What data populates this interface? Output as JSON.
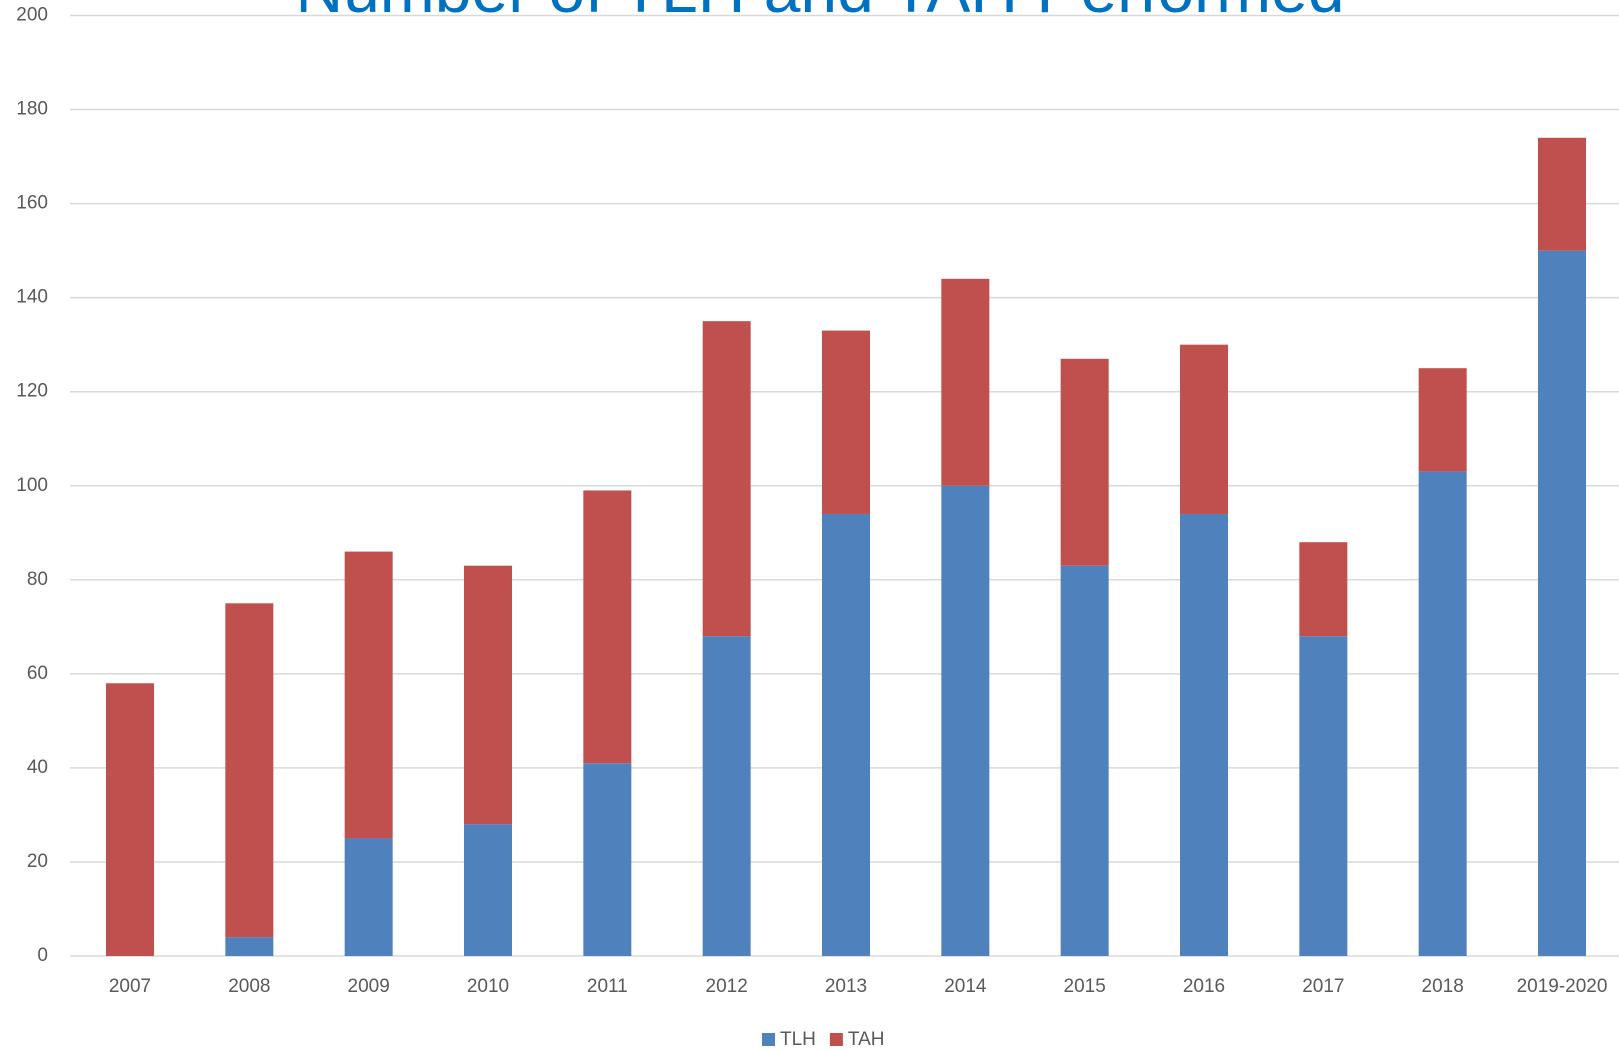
{
  "chart_data": {
    "type": "stacked_bar",
    "title": "Number of TLH and TAH Performed",
    "categories": [
      "2007",
      "2008",
      "2009",
      "2010",
      "2011",
      "2012",
      "2013",
      "2014",
      "2015",
      "2016",
      "2017",
      "2018",
      "2019-2020"
    ],
    "series": [
      {
        "name": "TLH",
        "color": "#4f81bd",
        "values": [
          0,
          4,
          25,
          28,
          41,
          68,
          94,
          100,
          83,
          94,
          68,
          103,
          150
        ]
      },
      {
        "name": "TAH",
        "color": "#c0504d",
        "values": [
          58,
          71,
          61,
          55,
          58,
          67,
          39,
          44,
          44,
          36,
          20,
          22,
          24
        ]
      }
    ],
    "ylim": [
      0,
      200
    ],
    "yticks": [
      0,
      20,
      40,
      60,
      80,
      100,
      120,
      140,
      160,
      180,
      200
    ],
    "grid": true,
    "legend": "bottom"
  }
}
